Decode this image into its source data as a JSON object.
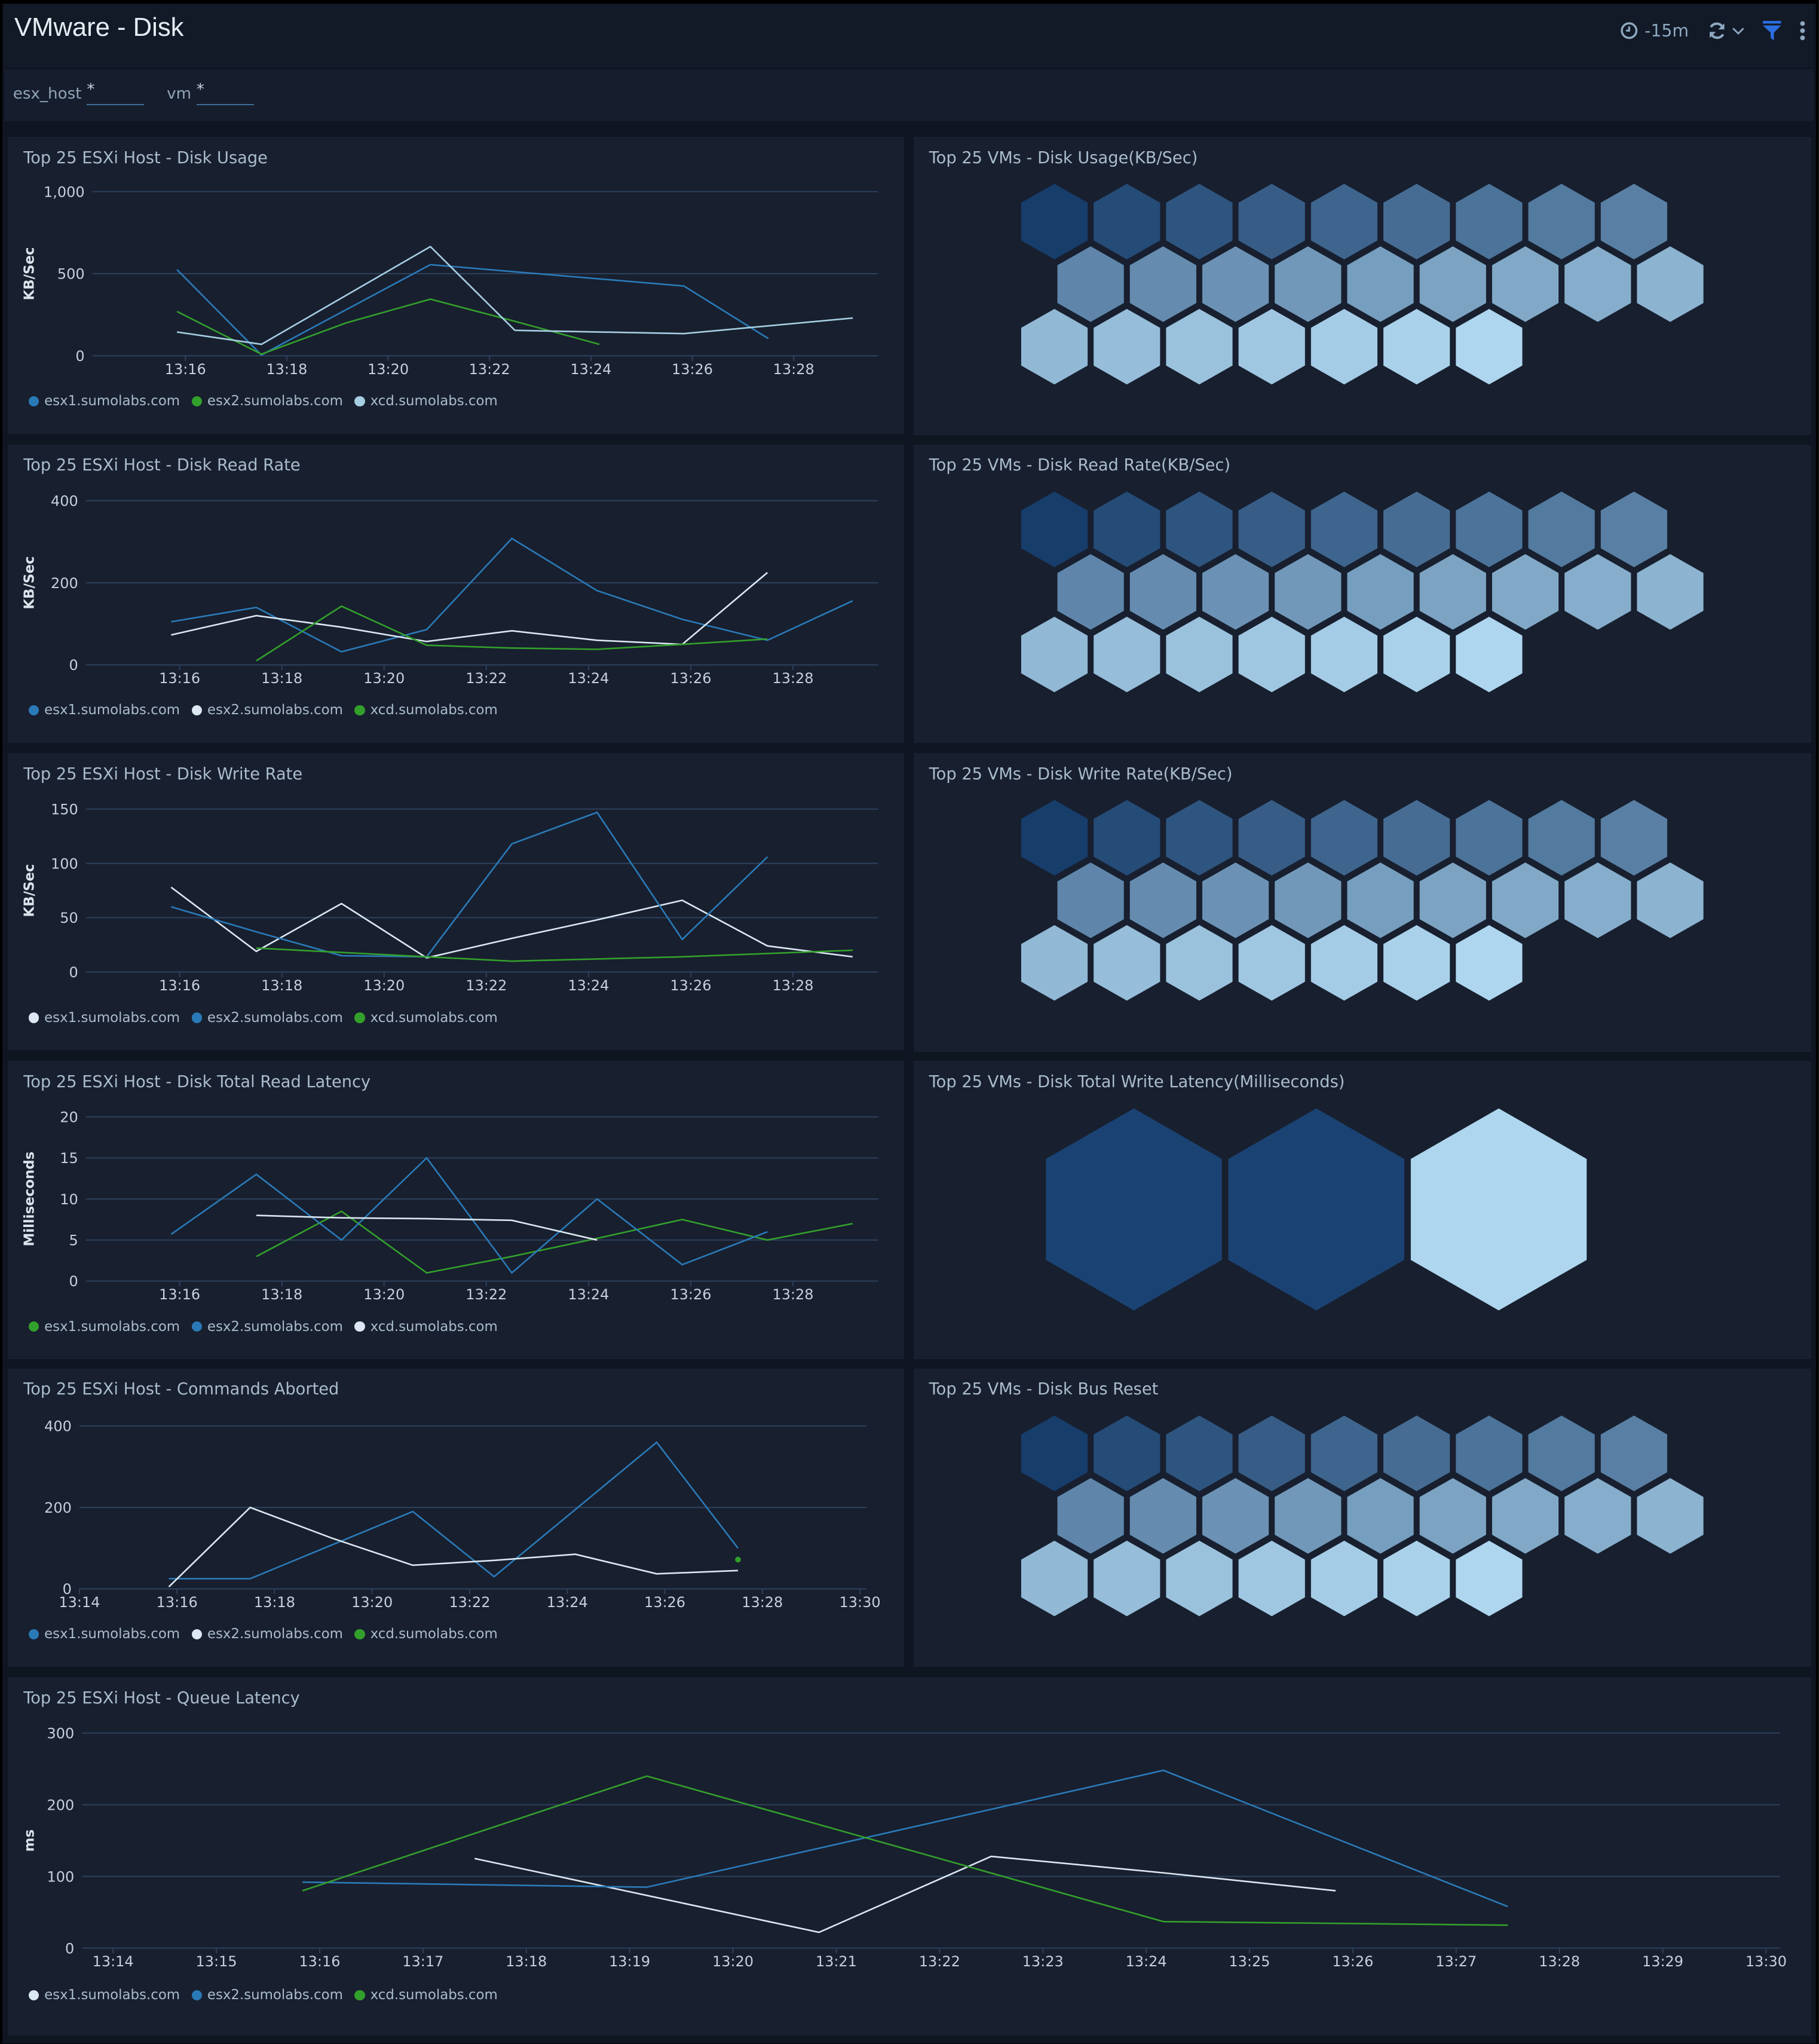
{
  "header": {
    "title": "VMware - Disk",
    "time_range": "-15m",
    "icons": [
      "clock-icon",
      "refresh-icon",
      "chevron-down-icon",
      "filter-icon",
      "more-vertical-icon"
    ],
    "accent_color": "#2b6fe0"
  },
  "filters": [
    {
      "label": "esx_host",
      "value": "*"
    },
    {
      "label": "vm",
      "value": "*"
    }
  ],
  "line_panels": [
    {
      "title": "Top 25 ESXi Host - Disk Usage",
      "chart_data": {
        "type": "line",
        "ylabel": "KB/Sec",
        "ylim": [
          0,
          1000
        ],
        "yticks": [
          {
            "v": 0,
            "label": "0"
          },
          {
            "v": 500,
            "label": "500"
          },
          {
            "v": 1000,
            "label": "1,000"
          }
        ],
        "xlim": [
          "13:14:10",
          "13:29:40"
        ],
        "xticks": [
          "13:16",
          "13:18",
          "13:20",
          "13:22",
          "13:24",
          "13:26",
          "13:28"
        ],
        "grid": true,
        "legend": "bottom",
        "series": [
          {
            "name": "esx1.sumolabs.com",
            "color": "#2a7ab8",
            "points": [
              [
                "13:15:50",
                525
              ],
              [
                "13:17:30",
                5
              ],
              [
                "13:20:50",
                555
              ],
              [
                "13:25:50",
                425
              ],
              [
                "13:27:30",
                105
              ]
            ]
          },
          {
            "name": "esx2.sumolabs.com",
            "color": "#33a02c",
            "points": [
              [
                "13:15:50",
                270
              ],
              [
                "13:17:30",
                10
              ],
              [
                "13:19:10",
                200
              ],
              [
                "13:20:50",
                345
              ],
              [
                "13:22:30",
                210
              ],
              [
                "13:24:10",
                70
              ]
            ]
          },
          {
            "name": "xcd.sumolabs.com",
            "color": "#a6cee3",
            "points": [
              [
                "13:15:50",
                145
              ],
              [
                "13:17:30",
                70
              ],
              [
                "13:20:50",
                665
              ],
              [
                "13:22:30",
                155
              ],
              [
                "13:25:50",
                135
              ],
              [
                "13:29:10",
                230
              ]
            ]
          }
        ]
      }
    },
    {
      "title": "Top 25 ESXi Host - Disk Read Rate",
      "chart_data": {
        "type": "line",
        "ylabel": "KB/Sec",
        "ylim": [
          0,
          400
        ],
        "yticks": [
          {
            "v": 0,
            "label": "0"
          },
          {
            "v": 200,
            "label": "200"
          },
          {
            "v": 400,
            "label": "400"
          }
        ],
        "xlim": [
          "13:14:10",
          "13:29:40"
        ],
        "xticks": [
          "13:16",
          "13:18",
          "13:20",
          "13:22",
          "13:24",
          "13:26",
          "13:28"
        ],
        "grid": true,
        "legend": "bottom",
        "series": [
          {
            "name": "esx1.sumolabs.com",
            "color": "#2a7ab8",
            "points": [
              [
                "13:15:50",
                105
              ],
              [
                "13:17:30",
                140
              ],
              [
                "13:19:10",
                32
              ],
              [
                "13:20:50",
                86
              ],
              [
                "13:22:30",
                308
              ],
              [
                "13:24:10",
                181
              ],
              [
                "13:25:50",
                111
              ],
              [
                "13:27:30",
                60
              ],
              [
                "13:29:10",
                156
              ]
            ]
          },
          {
            "name": "esx2.sumolabs.com",
            "color": "#dbe8f2",
            "points": [
              [
                "13:15:50",
                73
              ],
              [
                "13:17:30",
                120
              ],
              [
                "13:19:10",
                92
              ],
              [
                "13:20:50",
                57
              ],
              [
                "13:22:30",
                83
              ],
              [
                "13:24:10",
                60
              ],
              [
                "13:25:50",
                50
              ],
              [
                "13:27:30",
                225
              ]
            ]
          },
          {
            "name": "xcd.sumolabs.com",
            "color": "#33a02c",
            "points": [
              [
                "13:17:30",
                10
              ],
              [
                "13:19:10",
                143
              ],
              [
                "13:20:50",
                48
              ],
              [
                "13:22:30",
                41
              ],
              [
                "13:24:10",
                38
              ],
              [
                "13:25:50",
                50
              ],
              [
                "13:27:30",
                63
              ]
            ]
          }
        ]
      }
    },
    {
      "title": "Top 25 ESXi Host - Disk Write Rate",
      "chart_data": {
        "type": "line",
        "ylabel": "KB/Sec",
        "ylim": [
          0,
          150
        ],
        "yticks": [
          {
            "v": 0,
            "label": "0"
          },
          {
            "v": 50,
            "label": "50"
          },
          {
            "v": 100,
            "label": "100"
          },
          {
            "v": 150,
            "label": "150"
          }
        ],
        "xlim": [
          "13:14:10",
          "13:29:40"
        ],
        "xticks": [
          "13:16",
          "13:18",
          "13:20",
          "13:22",
          "13:24",
          "13:26",
          "13:28"
        ],
        "grid": true,
        "legend": "bottom",
        "series": [
          {
            "name": "esx1.sumolabs.com",
            "color": "#dbe8f2",
            "points": [
              [
                "13:15:50",
                78
              ],
              [
                "13:17:30",
                19
              ],
              [
                "13:19:10",
                63
              ],
              [
                "13:20:50",
                13
              ],
              [
                "13:22:30",
                31
              ],
              [
                "13:24:10",
                48
              ],
              [
                "13:25:50",
                66
              ],
              [
                "13:27:30",
                24
              ],
              [
                "13:29:10",
                14
              ]
            ]
          },
          {
            "name": "esx2.sumolabs.com",
            "color": "#2a7ab8",
            "points": [
              [
                "13:15:50",
                60
              ],
              [
                "13:17:30",
                37
              ],
              [
                "13:19:10",
                15
              ],
              [
                "13:20:50",
                14
              ],
              [
                "13:22:30",
                118
              ],
              [
                "13:24:10",
                147
              ],
              [
                "13:25:50",
                30
              ],
              [
                "13:27:30",
                106
              ]
            ]
          },
          {
            "name": "xcd.sumolabs.com",
            "color": "#33a02c",
            "points": [
              [
                "13:17:30",
                22
              ],
              [
                "13:19:10",
                18
              ],
              [
                "13:20:50",
                14
              ],
              [
                "13:22:30",
                10
              ],
              [
                "13:24:10",
                12
              ],
              [
                "13:25:50",
                14
              ],
              [
                "13:27:30",
                17
              ],
              [
                "13:29:10",
                20
              ]
            ]
          }
        ]
      }
    },
    {
      "title": "Top 25 ESXi Host - Disk Total Read Latency",
      "chart_data": {
        "type": "line",
        "ylabel": "Milliseconds",
        "ylim": [
          0,
          20
        ],
        "yticks": [
          {
            "v": 0,
            "label": "0"
          },
          {
            "v": 5,
            "label": "5"
          },
          {
            "v": 10,
            "label": "10"
          },
          {
            "v": 15,
            "label": "15"
          },
          {
            "v": 20,
            "label": "20"
          }
        ],
        "xlim": [
          "13:14:10",
          "13:29:40"
        ],
        "xticks": [
          "13:16",
          "13:18",
          "13:20",
          "13:22",
          "13:24",
          "13:26",
          "13:28"
        ],
        "grid": true,
        "legend": "bottom",
        "series": [
          {
            "name": "esx1.sumolabs.com",
            "color": "#33a02c",
            "points": [
              [
                "13:17:30",
                3
              ],
              [
                "13:19:10",
                8.5
              ],
              [
                "13:20:50",
                1
              ],
              [
                "13:22:30",
                3
              ],
              [
                "13:24:10",
                5.2
              ],
              [
                "13:25:50",
                7.5
              ],
              [
                "13:27:30",
                5
              ],
              [
                "13:29:10",
                7
              ]
            ]
          },
          {
            "name": "esx2.sumolabs.com",
            "color": "#2a7ab8",
            "points": [
              [
                "13:15:50",
                5.7
              ],
              [
                "13:17:30",
                13
              ],
              [
                "13:19:10",
                5
              ],
              [
                "13:20:50",
                15
              ],
              [
                "13:22:30",
                1
              ],
              [
                "13:24:10",
                10
              ],
              [
                "13:25:50",
                2
              ],
              [
                "13:27:30",
                6
              ]
            ]
          },
          {
            "name": "xcd.sumolabs.com",
            "color": "#dbe8f2",
            "points": [
              [
                "13:17:30",
                8
              ],
              [
                "13:19:10",
                7.7
              ],
              [
                "13:20:50",
                7.6
              ],
              [
                "13:22:30",
                7.4
              ],
              [
                "13:24:10",
                5
              ]
            ]
          }
        ]
      }
    },
    {
      "title": "Top 25 ESXi Host - Commands Aborted",
      "chart_data": {
        "type": "line",
        "ylabel": "",
        "ylim": [
          0,
          400
        ],
        "yticks": [
          {
            "v": 0,
            "label": "0"
          },
          {
            "v": 200,
            "label": "200"
          },
          {
            "v": 400,
            "label": "400"
          }
        ],
        "xlim": [
          "13:14:00",
          "13:30:00"
        ],
        "xticks": [
          "13:14",
          "13:16",
          "13:18",
          "13:20",
          "13:22",
          "13:24",
          "13:26",
          "13:28",
          "13:30"
        ],
        "grid": true,
        "legend": "bottom",
        "series": [
          {
            "name": "esx1.sumolabs.com",
            "color": "#2a7ab8",
            "points": [
              [
                "13:15:50",
                25
              ],
              [
                "13:17:30",
                25
              ],
              [
                "13:20:50",
                190
              ],
              [
                "13:22:30",
                30
              ],
              [
                "13:25:50",
                360
              ],
              [
                "13:27:30",
                100
              ]
            ]
          },
          {
            "name": "esx2.sumolabs.com",
            "color": "#dbe8f2",
            "points": [
              [
                "13:15:50",
                5
              ],
              [
                "13:17:30",
                200
              ],
              [
                "13:19:10",
                125
              ],
              [
                "13:20:50",
                58
              ],
              [
                "13:22:30",
                70
              ],
              [
                "13:24:10",
                85
              ],
              [
                "13:25:50",
                37
              ],
              [
                "13:27:30",
                45
              ]
            ]
          },
          {
            "name": "xcd.sumolabs.com",
            "color": "#33a02c",
            "points": [
              [
                "13:27:30",
                72
              ]
            ]
          }
        ]
      }
    },
    {
      "title": "Top 25 ESXi Host - Queue Latency",
      "chart_data": {
        "type": "line",
        "ylabel": "ms",
        "ylim": [
          0,
          300
        ],
        "yticks": [
          {
            "v": 0,
            "label": "0"
          },
          {
            "v": 100,
            "label": "100"
          },
          {
            "v": 200,
            "label": "200"
          },
          {
            "v": 300,
            "label": "300"
          }
        ],
        "xlim": [
          "13:13:42",
          "13:30:08"
        ],
        "xticks": [
          "13:14",
          "13:15",
          "13:16",
          "13:17",
          "13:18",
          "13:19",
          "13:20",
          "13:21",
          "13:22",
          "13:23",
          "13:24",
          "13:25",
          "13:26",
          "13:27",
          "13:28",
          "13:29",
          "13:30"
        ],
        "grid": true,
        "legend": "bottom",
        "series": [
          {
            "name": "esx1.sumolabs.com",
            "color": "#dbe8f2",
            "points": [
              [
                "13:17:30",
                125
              ],
              [
                "13:20:50",
                22
              ],
              [
                "13:22:30",
                128
              ],
              [
                "13:24:10",
                105
              ],
              [
                "13:25:50",
                80
              ]
            ]
          },
          {
            "name": "esx2.sumolabs.com",
            "color": "#2a7ab8",
            "points": [
              [
                "13:15:50",
                92
              ],
              [
                "13:19:10",
                85
              ],
              [
                "13:24:10",
                248
              ],
              [
                "13:27:30",
                58
              ]
            ]
          },
          {
            "name": "xcd.sumolabs.com",
            "color": "#33a02c",
            "points": [
              [
                "13:15:50",
                80
              ],
              [
                "13:19:10",
                240
              ],
              [
                "13:24:10",
                37
              ],
              [
                "13:27:30",
                32
              ]
            ]
          }
        ]
      }
    }
  ],
  "hex_panels": [
    {
      "title": "Top 25 VMs - Disk Usage(KB/Sec)",
      "count": 25,
      "color_scale": [
        "#173d6b",
        "#aed6ee"
      ]
    },
    {
      "title": "Top 25 VMs - Disk Read Rate(KB/Sec)",
      "count": 25,
      "color_scale": [
        "#173d6b",
        "#aed6ee"
      ]
    },
    {
      "title": "Top 25 VMs - Disk Write Rate(KB/Sec)",
      "count": 25,
      "color_scale": [
        "#173d6b",
        "#aed6ee"
      ]
    },
    {
      "title": "Top 25 VMs - Disk Total Write Latency(Milliseconds)",
      "count": 3,
      "colors": [
        "#1a4373",
        "#1a4373",
        "#aed6ee"
      ]
    },
    {
      "title": "Top 25 VMs - Disk Bus Reset",
      "count": 25,
      "color_scale": [
        "#173d6b",
        "#aed6ee"
      ]
    }
  ]
}
